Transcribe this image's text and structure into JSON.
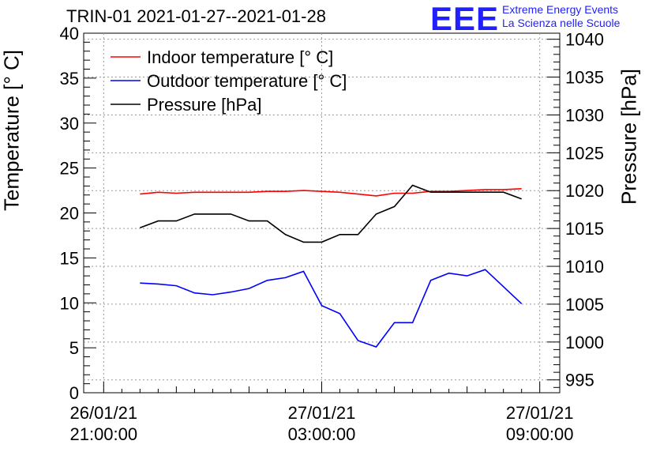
{
  "chart_data": {
    "type": "line",
    "title": "TRIN-01 2021-01-27--2021-01-28",
    "ylabel": "Temperature [° C]",
    "y2label": "Pressure [hPa]",
    "ylim": [
      0,
      40
    ],
    "y2lim": [
      993.3,
      1040.8
    ],
    "xlim_hours": [
      -0.55,
      12.55
    ],
    "x_tick_labels": [
      {
        "hour": 0,
        "line1": "26/01/21",
        "line2": "21:00:00"
      },
      {
        "hour": 6,
        "line1": "27/01/21",
        "line2": "03:00:00"
      },
      {
        "hour": 12,
        "line1": "27/01/21",
        "line2": "09:00:00"
      }
    ],
    "y_ticks": [
      0,
      5,
      10,
      15,
      20,
      25,
      30,
      35,
      40
    ],
    "y2_ticks": [
      995,
      1000,
      1005,
      1010,
      1015,
      1020,
      1025,
      1030,
      1035,
      1040
    ],
    "grid": true,
    "legend": "top-left",
    "series": [
      {
        "name": "Indoor temperature [° C]",
        "color": "#ff0000",
        "axis": "left",
        "x": [
          1,
          1.5,
          2,
          2.5,
          3,
          3.5,
          4,
          4.5,
          5,
          5.5,
          6,
          6.5,
          7,
          7.5,
          8,
          8.5,
          9,
          9.5,
          10,
          10.5,
          11,
          11.5
        ],
        "y": [
          22.1,
          22.3,
          22.2,
          22.3,
          22.3,
          22.3,
          22.3,
          22.4,
          22.4,
          22.5,
          22.4,
          22.3,
          22.1,
          21.9,
          22.2,
          22.2,
          22.4,
          22.4,
          22.5,
          22.6,
          22.6,
          22.7
        ]
      },
      {
        "name": "Outdoor temperature [° C]",
        "color": "#0000ff",
        "axis": "left",
        "x": [
          1,
          1.5,
          2,
          2.5,
          3,
          3.5,
          4,
          4.5,
          5,
          5.5,
          6,
          6.5,
          7,
          7.5,
          8,
          8.5,
          9,
          9.5,
          10,
          10.5,
          11,
          11.5
        ],
        "y": [
          12.2,
          12.1,
          11.9,
          11.1,
          10.9,
          11.2,
          11.6,
          12.5,
          12.8,
          13.5,
          9.7,
          8.8,
          5.8,
          5.1,
          7.8,
          7.8,
          12.5,
          13.3,
          13.0,
          13.7,
          11.8,
          9.9
        ]
      },
      {
        "name": "Pressure [hPa]",
        "color": "#000000",
        "axis": "right",
        "x": [
          1,
          1.5,
          2,
          2.5,
          3,
          3.5,
          4,
          4.5,
          5,
          5.5,
          6,
          6.5,
          7,
          7.5,
          8,
          8.5,
          9,
          9.5,
          10,
          10.5,
          11,
          11.5
        ],
        "y": [
          1015.1,
          1016.0,
          1016.0,
          1016.9,
          1016.9,
          1016.9,
          1016.0,
          1016.0,
          1014.2,
          1013.2,
          1013.2,
          1014.2,
          1014.2,
          1016.9,
          1017.9,
          1020.7,
          1019.8,
          1019.8,
          1019.8,
          1019.8,
          1019.8,
          1018.9
        ]
      }
    ]
  },
  "logo": {
    "text": "EEE",
    "line1": "Extreme Energy Events",
    "line2": "La Scienza nelle Scuole",
    "color": "#1f1fff"
  }
}
